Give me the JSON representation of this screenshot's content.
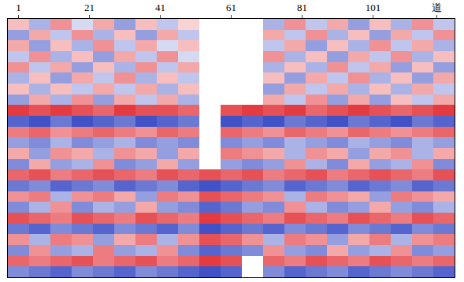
{
  "chart_data": {
    "type": "heatmap",
    "x": [
      1,
      7,
      13,
      19,
      25,
      31,
      37,
      43,
      49,
      55,
      61,
      67,
      73,
      79,
      85,
      91,
      97,
      103,
      109,
      115,
      121
    ],
    "y": [
      0.5,
      1.5,
      2.5,
      3.5,
      4.5,
      5.5,
      6.5,
      7.5,
      8.5,
      9.5,
      10.5,
      11.5,
      12.5,
      13.5,
      14.5,
      15.5,
      16.5,
      17.5,
      18.5,
      19.5,
      20.5,
      21.5,
      22.5,
      23.5
    ],
    "xlim": [
      -2,
      124
    ],
    "ylim": [
      0,
      24
    ],
    "xticks": [
      1,
      21,
      41,
      61,
      81,
      101,
      {
        "value": 119,
        "label": "道"
      }
    ],
    "tick_labels": "x",
    "zlim": [
      -1,
      1
    ],
    "colors": [
      "#2b3fc0",
      "#ffffff",
      "#e0252a"
    ],
    "z": [
      [
        0.3,
        -0.4,
        0.5,
        -0.2,
        0.4,
        -0.5,
        0.3,
        -0.3,
        0.2,
        null,
        null,
        null,
        -0.4,
        0.5,
        -0.3,
        0.4,
        -0.5,
        0.3,
        -0.4,
        0.5,
        -0.3
      ],
      [
        -0.5,
        0.4,
        -0.3,
        0.5,
        -0.4,
        0.3,
        -0.5,
        0.4,
        -0.3,
        null,
        null,
        null,
        0.4,
        -0.3,
        0.5,
        -0.4,
        0.3,
        -0.5,
        0.4,
        -0.3,
        0.5
      ],
      [
        0.4,
        -0.5,
        0.3,
        -0.4,
        0.5,
        -0.3,
        0.4,
        -0.2,
        0.3,
        null,
        null,
        null,
        -0.3,
        0.4,
        -0.5,
        0.3,
        -0.4,
        0.5,
        -0.3,
        0.4,
        -0.4
      ],
      [
        -0.3,
        0.5,
        -0.4,
        0.3,
        -0.5,
        0.4,
        -0.3,
        0.5,
        -0.2,
        null,
        null,
        null,
        0.5,
        -0.4,
        0.3,
        -0.5,
        0.4,
        -0.3,
        0.5,
        -0.4,
        0.3
      ],
      [
        0.5,
        -0.3,
        0.4,
        -0.5,
        0.3,
        -0.4,
        0.5,
        -0.3,
        0.4,
        null,
        null,
        null,
        -0.4,
        0.3,
        -0.4,
        0.5,
        -0.3,
        0.4,
        -0.5,
        0.3,
        -0.5
      ],
      [
        -0.4,
        0.3,
        -0.5,
        0.4,
        -0.3,
        0.5,
        -0.4,
        0.3,
        -0.3,
        null,
        null,
        null,
        0.3,
        -0.5,
        0.4,
        -0.3,
        0.5,
        -0.4,
        0.3,
        -0.5,
        0.4
      ],
      [
        0.3,
        -0.4,
        0.3,
        -0.3,
        0.4,
        -0.3,
        0.4,
        -0.4,
        0.3,
        null,
        null,
        null,
        -0.5,
        0.4,
        -0.3,
        0.4,
        -0.4,
        0.3,
        -0.4,
        0.4,
        -0.3
      ],
      [
        -0.5,
        0.4,
        -0.4,
        0.5,
        -0.5,
        0.4,
        -0.3,
        0.4,
        -0.4,
        null,
        null,
        null,
        0.4,
        -0.3,
        0.5,
        -0.5,
        0.4,
        -0.5,
        0.3,
        -0.3,
        0.4
      ],
      [
        0.9,
        0.8,
        0.9,
        0.8,
        0.7,
        0.9,
        0.8,
        0.8,
        0.7,
        null,
        0.8,
        0.9,
        0.8,
        0.9,
        0.7,
        0.8,
        0.9,
        0.8,
        0.7,
        0.8,
        0.9
      ],
      [
        -0.8,
        -0.9,
        -0.7,
        -0.9,
        -0.8,
        -0.7,
        -0.9,
        -0.8,
        -0.7,
        null,
        -0.9,
        -0.8,
        -0.9,
        -0.7,
        -0.8,
        -0.9,
        -0.7,
        -0.8,
        -0.9,
        -0.7,
        -0.8
      ],
      [
        0.6,
        0.7,
        0.5,
        0.6,
        0.7,
        0.6,
        0.5,
        0.7,
        0.6,
        null,
        0.7,
        0.6,
        0.5,
        0.7,
        0.6,
        0.5,
        0.7,
        0.6,
        0.5,
        0.6,
        0.7
      ],
      [
        -0.5,
        -0.6,
        -0.4,
        -0.6,
        -0.5,
        -0.4,
        -0.6,
        -0.5,
        -0.6,
        null,
        -0.6,
        -0.5,
        -0.6,
        -0.4,
        -0.5,
        -0.6,
        -0.4,
        -0.5,
        -0.6,
        -0.4,
        -0.5
      ],
      [
        0.4,
        -0.5,
        0.5,
        0.4,
        -0.4,
        0.5,
        0.4,
        -0.5,
        0.4,
        null,
        0.6,
        0.5,
        0.4,
        -0.4,
        0.5,
        0.4,
        -0.5,
        0.4,
        0.5,
        -0.4,
        0.4
      ],
      [
        -0.6,
        0.4,
        -0.5,
        -0.4,
        0.5,
        -0.6,
        -0.5,
        0.4,
        -0.5,
        null,
        -0.5,
        -0.6,
        -0.5,
        0.5,
        -0.4,
        -0.6,
        0.4,
        -0.5,
        -0.4,
        0.5,
        -0.6
      ],
      [
        0.7,
        0.8,
        0.6,
        0.7,
        0.8,
        0.7,
        0.6,
        0.8,
        0.7,
        0.8,
        0.7,
        0.8,
        0.6,
        0.7,
        0.8,
        0.6,
        0.7,
        0.8,
        0.7,
        0.6,
        0.8
      ],
      [
        -0.7,
        -0.6,
        -0.8,
        -0.7,
        -0.6,
        -0.8,
        -0.7,
        -0.6,
        -0.8,
        -0.9,
        -0.8,
        -0.7,
        -0.6,
        -0.8,
        -0.7,
        -0.6,
        -0.8,
        -0.7,
        -0.6,
        -0.8,
        -0.7
      ],
      [
        0.5,
        0.6,
        -0.4,
        0.5,
        0.6,
        0.4,
        -0.5,
        0.6,
        0.5,
        0.8,
        0.7,
        0.6,
        0.5,
        -0.4,
        0.6,
        0.5,
        0.4,
        -0.5,
        0.6,
        0.5,
        0.4
      ],
      [
        -0.6,
        -0.4,
        0.5,
        -0.6,
        -0.4,
        -0.5,
        0.4,
        -0.5,
        -0.6,
        -0.8,
        -0.7,
        -0.5,
        -0.6,
        0.5,
        -0.4,
        -0.6,
        -0.5,
        0.4,
        -0.5,
        -0.6,
        -0.4
      ],
      [
        0.8,
        0.7,
        0.6,
        0.8,
        0.7,
        0.6,
        0.8,
        0.7,
        0.6,
        0.9,
        0.8,
        0.7,
        0.6,
        0.8,
        0.7,
        0.6,
        0.8,
        0.7,
        0.6,
        0.8,
        0.7
      ],
      [
        -0.7,
        -0.8,
        -0.6,
        -0.7,
        -0.8,
        -0.6,
        -0.7,
        -0.8,
        -0.6,
        -0.9,
        -0.8,
        -0.7,
        -0.8,
        -0.6,
        -0.7,
        -0.8,
        -0.6,
        -0.7,
        -0.8,
        -0.6,
        -0.7
      ],
      [
        0.5,
        -0.4,
        0.6,
        0.5,
        -0.5,
        0.4,
        0.6,
        -0.4,
        0.5,
        0.8,
        0.7,
        0.5,
        -0.4,
        0.6,
        0.5,
        -0.5,
        0.4,
        0.6,
        -0.4,
        0.5,
        0.6
      ],
      [
        -0.6,
        0.5,
        -0.5,
        -0.4,
        0.6,
        -0.5,
        -0.4,
        0.5,
        -0.6,
        -0.8,
        -0.7,
        -0.6,
        0.5,
        -0.5,
        -0.6,
        0.4,
        -0.5,
        -0.4,
        0.5,
        -0.6,
        -0.5
      ],
      [
        0.7,
        0.6,
        0.7,
        0.8,
        0.6,
        0.7,
        0.8,
        0.6,
        0.7,
        0.9,
        0.8,
        null,
        0.7,
        0.6,
        0.8,
        0.7,
        0.6,
        0.8,
        0.7,
        0.6,
        0.7
      ],
      [
        -0.6,
        -0.7,
        -0.8,
        -0.6,
        -0.7,
        -0.8,
        -0.6,
        -0.7,
        -0.8,
        -0.9,
        -0.8,
        null,
        -0.6,
        -0.8,
        -0.7,
        -0.6,
        -0.8,
        -0.7,
        -0.6,
        -0.7,
        -0.8
      ]
    ]
  }
}
